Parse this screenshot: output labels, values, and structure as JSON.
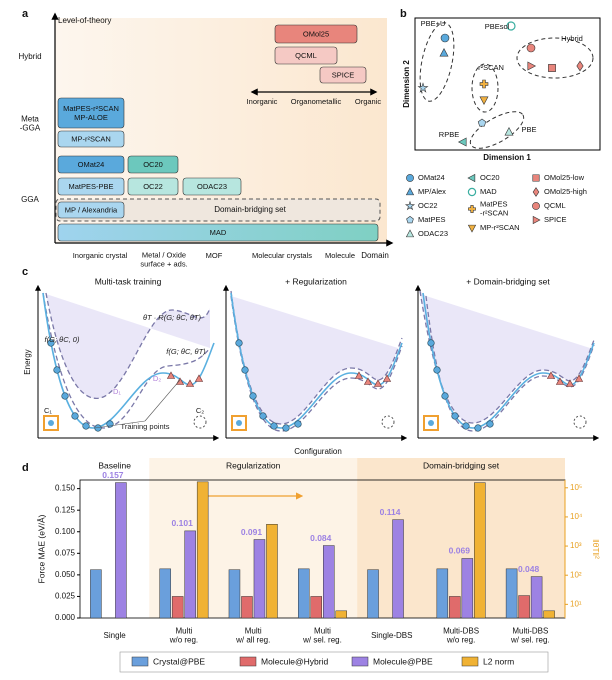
{
  "panel_a": {
    "label": "a",
    "y_axis_label": "Level-of-theory",
    "x_axis_label": "Domain",
    "levels": [
      "Hybrid",
      "Meta\n-GGA",
      "GGA"
    ],
    "domains": [
      "Inorganic crystal",
      "Metal / Oxide\nsurface + ads.",
      "MOF",
      "Molecular crystals",
      "Molecule"
    ],
    "datasets": [
      "OMol25",
      "QCML",
      "SPICE",
      "MatPES-r²SCAN\nMP-ALOE",
      "MP-r²SCAN",
      "OMat24",
      "OC20",
      "MatPES-PBE",
      "OC22",
      "ODAC23",
      "MP / Alexandria",
      "MAD"
    ],
    "bridging_label": "Domain-bridging set",
    "arrow_labels": [
      "Inorganic",
      "Organometallic",
      "Organic"
    ]
  },
  "panel_b": {
    "label": "b",
    "x_axis_label": "Dimension 1",
    "y_axis_label": "Dimension 2",
    "clusters": [
      "PBE+U",
      "PBEsol",
      "Hybrid",
      "r²SCAN",
      "PBE",
      "RPBE"
    ],
    "legend": [
      "OMat24",
      "MP/Alex",
      "OC22",
      "MatPES",
      "ODAC23",
      "OC20",
      "MAD",
      "MatPES\n-r²SCAN",
      "MP-r²SCAN",
      "OMol25-low",
      "OMol25-high",
      "QCML",
      "SPICE"
    ]
  },
  "panel_c": {
    "label": "c",
    "titles": [
      "Multi-task training",
      "+ Regularization",
      "+ Domain-bridging set"
    ],
    "x_axis_label": "Configuration",
    "y_axis_label": "Energy",
    "annotations": [
      "f(G; θC, 0)",
      "θT · R(G; θC, θT)",
      "f(G; θC, θT)",
      "D₁",
      "D₂",
      "C₁",
      "C₂",
      "Training points"
    ]
  },
  "chart_data": {
    "type": "bar",
    "label": "d",
    "group_labels": [
      "Baseline",
      "Regularization",
      "Domain-bridging set"
    ],
    "y_label": "Force MAE (eV/Å)",
    "y2_label": "‖θT‖²",
    "categories": [
      "Single",
      "Multi\nw/o reg.",
      "Multi\nw/ all reg.",
      "Multi\nw/ sel. reg.",
      "Single-DBS",
      "Multi-DBS\nw/o reg.",
      "Multi-DBS\nw/ sel. reg."
    ],
    "series": [
      {
        "name": "Crystal@PBE",
        "color": "#6a9fdc",
        "values": [
          0.056,
          0.057,
          0.056,
          0.057,
          0.056,
          0.057,
          0.057
        ]
      },
      {
        "name": "Molecule@Hybrid",
        "color": "#e06b6b",
        "values": [
          null,
          0.025,
          0.025,
          0.025,
          null,
          0.025,
          0.026
        ]
      },
      {
        "name": "Molecule@PBE",
        "color": "#9d82e3",
        "values": [
          0.157,
          0.101,
          0.091,
          0.084,
          0.114,
          0.069,
          0.048
        ],
        "data_labels": true
      },
      {
        "name": "L2 norm",
        "color": "#f0b234",
        "axis": "y2",
        "values": [
          null,
          160000,
          5600,
          6,
          null,
          150000,
          6
        ]
      }
    ],
    "ylim": [
      0,
      0.16
    ],
    "yticks": [
      {
        "value": 0,
        "label": "0.000"
      },
      {
        "value": 0.025,
        "label": "0.025"
      },
      {
        "value": 0.05,
        "label": "0.050"
      },
      {
        "value": 0.075,
        "label": "0.075"
      },
      {
        "value": 0.1,
        "label": "0.100"
      },
      {
        "value": 0.125,
        "label": "0.125"
      },
      {
        "value": 0.15,
        "label": "0.150"
      }
    ],
    "y2lim": [
      3.4,
      185000
    ],
    "y2log": true,
    "y2color": "#e8a020",
    "y2ticks": [
      {
        "value": 10,
        "label": "10¹"
      },
      {
        "value": 100,
        "label": "10²"
      },
      {
        "value": 1000,
        "label": "10³"
      },
      {
        "value": 10000,
        "label": "10⁴"
      },
      {
        "value": 100000,
        "label": "10⁵"
      }
    ],
    "legend": "bottom"
  }
}
